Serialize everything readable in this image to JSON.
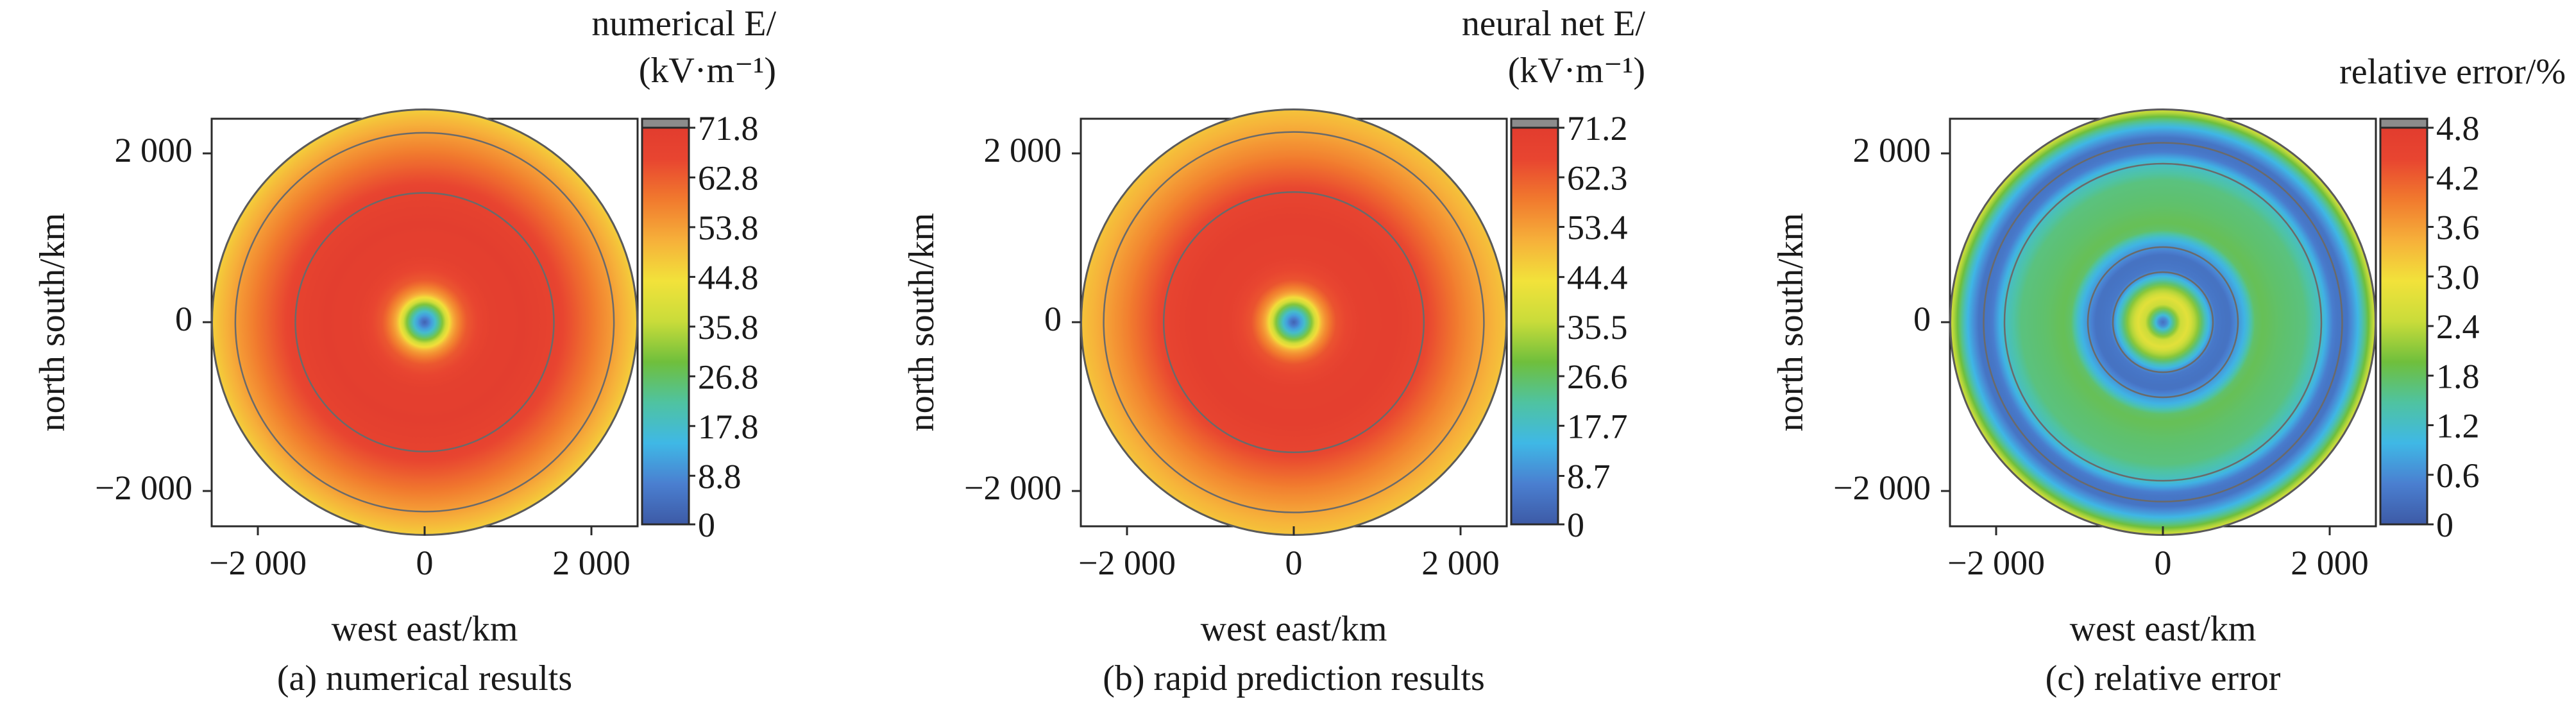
{
  "chart_data": [
    {
      "type": "heatmap",
      "subcaption": "(a) numerical results",
      "xlabel": "west east/km",
      "ylabel": "north south/km",
      "xticks": [
        -2000,
        0,
        2000
      ],
      "xtick_labels": [
        "−2 000",
        "0",
        "2 000"
      ],
      "yticks": [
        2000,
        0,
        -2000
      ],
      "ytick_labels": [
        "2 000",
        "0",
        "−2 000"
      ],
      "xlim": [
        -2550,
        2550
      ],
      "ylim": [
        -2480,
        2480
      ],
      "domain_radius_km": 2550,
      "colorbar": {
        "title_line1": "numerical E/",
        "title_line2": "(kV·m⁻¹)",
        "ticks": [
          0,
          8.8,
          17.8,
          26.8,
          35.8,
          44.8,
          53.8,
          62.8,
          71.8
        ],
        "tick_labels": [
          "0",
          "8.8",
          "17.8",
          "26.8",
          "35.8",
          "44.8",
          "53.8",
          "62.8",
          "71.8"
        ],
        "vmax": 71.8,
        "colors": [
          "#3d5aa6",
          "#4a7fd0",
          "#3fb8e6",
          "#4fc3a1",
          "#6fbf3c",
          "#c9dc3a",
          "#f2e23a",
          "#f6b03a",
          "#f17a2e",
          "#e84530",
          "#e03a2e"
        ]
      },
      "radial_profile": {
        "r_km": [
          0,
          60,
          150,
          250,
          350,
          500,
          800,
          1200,
          1600,
          2000,
          2300,
          2550
        ],
        "value": [
          2,
          8,
          20,
          36,
          52,
          62,
          68,
          69,
          66,
          58,
          52,
          46
        ]
      },
      "contour_radii_km": [
        1550,
        2270
      ]
    },
    {
      "type": "heatmap",
      "subcaption": "(b) rapid prediction results",
      "xlabel": "west east/km",
      "ylabel": "north south/km",
      "xticks": [
        -2000,
        0,
        2000
      ],
      "xtick_labels": [
        "−2 000",
        "0",
        "2 000"
      ],
      "yticks": [
        2000,
        0,
        -2000
      ],
      "ytick_labels": [
        "2 000",
        "0",
        "−2 000"
      ],
      "xlim": [
        -2550,
        2550
      ],
      "ylim": [
        -2480,
        2480
      ],
      "domain_radius_km": 2550,
      "colorbar": {
        "title_line1": "neural net E/",
        "title_line2": "(kV·m⁻¹)",
        "ticks": [
          0,
          8.7,
          17.7,
          26.6,
          35.5,
          44.4,
          53.4,
          62.3,
          71.2
        ],
        "tick_labels": [
          "0",
          "8.7",
          "17.7",
          "26.6",
          "35.5",
          "44.4",
          "53.4",
          "62.3",
          "71.2"
        ],
        "vmax": 71.2,
        "colors": [
          "#3d5aa6",
          "#4a7fd0",
          "#3fb8e6",
          "#4fc3a1",
          "#6fbf3c",
          "#c9dc3a",
          "#f2e23a",
          "#f6b03a",
          "#f17a2e",
          "#e84530",
          "#e03a2e"
        ]
      },
      "radial_profile": {
        "r_km": [
          0,
          60,
          150,
          250,
          350,
          500,
          800,
          1200,
          1600,
          2000,
          2300,
          2550
        ],
        "value": [
          2,
          8,
          20,
          36,
          52,
          62,
          67,
          68,
          64,
          56,
          51,
          47
        ]
      },
      "contour_radii_km": [
        1560,
        2280
      ]
    },
    {
      "type": "heatmap",
      "subcaption": "(c) relative error",
      "xlabel": "west east/km",
      "ylabel": "north south/km",
      "xticks": [
        -2000,
        0,
        2000
      ],
      "xtick_labels": [
        "−2 000",
        "0",
        "2 000"
      ],
      "yticks": [
        2000,
        0,
        -2000
      ],
      "ytick_labels": [
        "2 000",
        "0",
        "−2 000"
      ],
      "xlim": [
        -2550,
        2550
      ],
      "ylim": [
        -2480,
        2480
      ],
      "domain_radius_km": 2550,
      "colorbar": {
        "title_line1": "relative error/%",
        "title_line2": "",
        "ticks": [
          0,
          0.6,
          1.2,
          1.8,
          2.4,
          3.0,
          3.6,
          4.2,
          4.8
        ],
        "tick_labels": [
          "0",
          "0.6",
          "1.2",
          "1.8",
          "2.4",
          "3.0",
          "3.6",
          "4.2",
          "4.8"
        ],
        "vmax": 4.8,
        "colors": [
          "#3d5aa6",
          "#4a7fd0",
          "#3fb8e6",
          "#4fc3a1",
          "#6fbf3c",
          "#c9dc3a",
          "#f2e23a",
          "#f6b03a",
          "#f17a2e",
          "#e84530",
          "#e03a2e"
        ]
      },
      "radial_profile": {
        "r_km": [
          0,
          50,
          120,
          200,
          300,
          420,
          520,
          620,
          800,
          1000,
          1100,
          1200,
          1400,
          1700,
          1900,
          2050,
          2200,
          2350,
          2450,
          2550
        ],
        "value": [
          0.3,
          0.6,
          1.5,
          2.4,
          2.7,
          2.1,
          1.2,
          0.4,
          0.3,
          1.0,
          1.7,
          1.8,
          1.7,
          1.6,
          1.2,
          0.4,
          0.3,
          1.0,
          1.8,
          2.6
        ]
      },
      "contour_radii_km": [
        600,
        900,
        1900,
        2150
      ]
    }
  ]
}
